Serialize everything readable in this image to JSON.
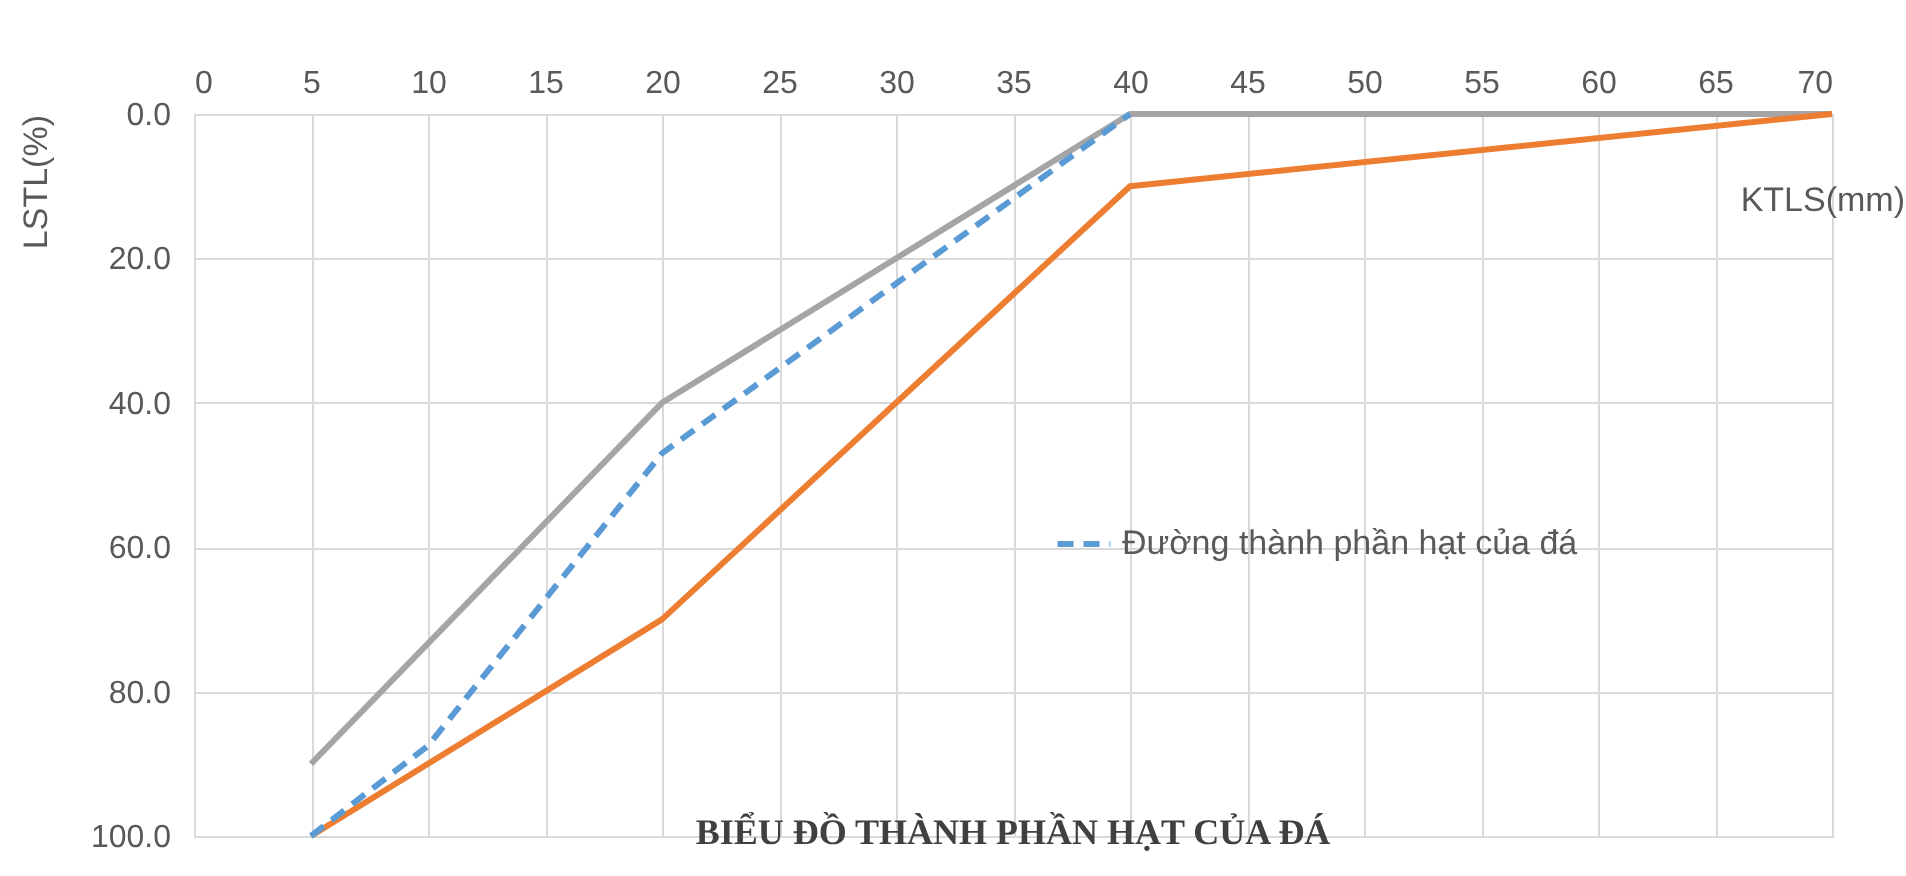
{
  "chart_data": {
    "type": "line",
    "title": "BIỂU ĐỒ THÀNH PHẦN HẠT CỦA ĐÁ",
    "xlabel": "KTLS(mm)",
    "ylabel": "LSTL(%)",
    "xlim": [
      0,
      70
    ],
    "xticks": [
      0,
      5,
      10,
      15,
      20,
      25,
      30,
      35,
      40,
      45,
      50,
      55,
      60,
      65,
      70
    ],
    "ylim": [
      100,
      0
    ],
    "yticks": [
      {
        "value": 0,
        "label": "0.0"
      },
      {
        "value": 20,
        "label": "20.0"
      },
      {
        "value": 40,
        "label": "40.0"
      },
      {
        "value": 60,
        "label": "60.0"
      },
      {
        "value": 80,
        "label": "80.0"
      },
      {
        "value": 100,
        "label": "100.0"
      }
    ],
    "grid": true,
    "legend": "right",
    "marker": "none",
    "series": [
      {
        "color": "#a5a5a5",
        "line_style": "solid",
        "x": [
          5,
          20,
          40,
          70
        ],
        "values": [
          90,
          40,
          0,
          0
        ]
      },
      {
        "color": "#ed7d31",
        "line_style": "solid",
        "x": [
          5,
          20,
          40,
          70
        ],
        "values": [
          100,
          70,
          10,
          0
        ]
      },
      {
        "name": "Đường thành phần hạt của đá",
        "color": "#5b9bd5",
        "line_style": "dashed",
        "x": [
          5,
          10,
          20,
          40
        ],
        "values": [
          100,
          87.5,
          47,
          0
        ]
      }
    ]
  }
}
